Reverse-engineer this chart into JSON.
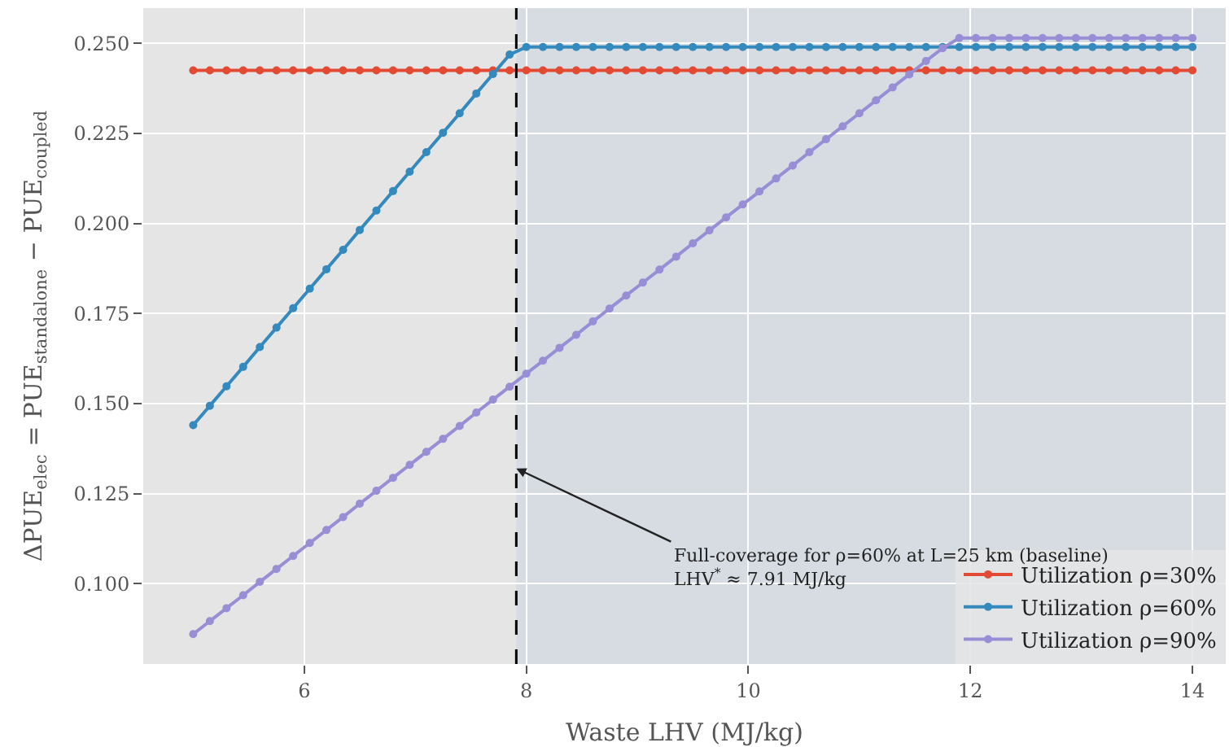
{
  "chart_data": {
    "type": "line",
    "xlabel": "Waste LHV (MJ/kg)",
    "ylabel": "ΔPUE$_{elec}$ = PUE$_{standalone}$ − PUE$_{coupled}$",
    "x": [
      5.0,
      5.15,
      5.3,
      5.45,
      5.6,
      5.75,
      5.9,
      6.05,
      6.2,
      6.35,
      6.5,
      6.65,
      6.8,
      6.95,
      7.1,
      7.25,
      7.4,
      7.55,
      7.7,
      7.85,
      8.0,
      8.15,
      8.3,
      8.45,
      8.6,
      8.75,
      8.9,
      9.05,
      9.2,
      9.35,
      9.5,
      9.65,
      9.8,
      9.95,
      10.1,
      10.25,
      10.4,
      10.55,
      10.7,
      10.85,
      11.0,
      11.15,
      11.3,
      11.45,
      11.6,
      11.75,
      11.9,
      12.05,
      12.2,
      12.35,
      12.5,
      12.65,
      12.8,
      12.95,
      13.1,
      13.25,
      13.4,
      13.55,
      13.7,
      13.85,
      14.0
    ],
    "series": [
      {
        "name": "Utilization ρ=30%",
        "color": "#e24a33",
        "values": [
          0.2425,
          0.2425,
          0.2425,
          0.2425,
          0.2425,
          0.2425,
          0.2425,
          0.2425,
          0.2425,
          0.2425,
          0.2425,
          0.2425,
          0.2425,
          0.2425,
          0.2425,
          0.2425,
          0.2425,
          0.2425,
          0.2425,
          0.2425,
          0.2425,
          0.2425,
          0.2425,
          0.2425,
          0.2425,
          0.2425,
          0.2425,
          0.2425,
          0.2425,
          0.2425,
          0.2425,
          0.2425,
          0.2425,
          0.2425,
          0.2425,
          0.2425,
          0.2425,
          0.2425,
          0.2425,
          0.2425,
          0.2425,
          0.2425,
          0.2425,
          0.2425,
          0.2425,
          0.2425,
          0.2425,
          0.2425,
          0.2425,
          0.2425,
          0.2425,
          0.2425,
          0.2425,
          0.2425,
          0.2425,
          0.2425,
          0.2425,
          0.2425,
          0.2425,
          0.2425,
          0.2425
        ]
      },
      {
        "name": "Utilization ρ=60%",
        "color": "#348abd",
        "values": [
          0.144,
          0.1494,
          0.1548,
          0.1602,
          0.1657,
          0.1711,
          0.1765,
          0.1819,
          0.1873,
          0.1927,
          0.1982,
          0.2036,
          0.209,
          0.2144,
          0.2198,
          0.2252,
          0.2306,
          0.2361,
          0.2415,
          0.2469,
          0.249,
          0.249,
          0.249,
          0.249,
          0.249,
          0.249,
          0.249,
          0.249,
          0.249,
          0.249,
          0.249,
          0.249,
          0.249,
          0.249,
          0.249,
          0.249,
          0.249,
          0.249,
          0.249,
          0.249,
          0.249,
          0.249,
          0.249,
          0.249,
          0.249,
          0.249,
          0.249,
          0.249,
          0.249,
          0.249,
          0.249,
          0.249,
          0.249,
          0.249,
          0.249,
          0.249,
          0.249,
          0.249,
          0.249,
          0.249,
          0.249
        ]
      },
      {
        "name": "Utilization ρ=90%",
        "color": "#988ed5",
        "values": [
          0.086,
          0.0896,
          0.0932,
          0.0968,
          0.1005,
          0.1041,
          0.1077,
          0.1113,
          0.1149,
          0.1185,
          0.1222,
          0.1258,
          0.1294,
          0.133,
          0.1366,
          0.1402,
          0.1438,
          0.1475,
          0.1511,
          0.1547,
          0.1583,
          0.1619,
          0.1655,
          0.1691,
          0.1728,
          0.1764,
          0.18,
          0.1836,
          0.1872,
          0.1908,
          0.1945,
          0.1981,
          0.2017,
          0.2053,
          0.2089,
          0.2125,
          0.2161,
          0.2198,
          0.2234,
          0.227,
          0.2306,
          0.2342,
          0.2378,
          0.2414,
          0.2451,
          0.2487,
          0.2515,
          0.2515,
          0.2515,
          0.2515,
          0.2515,
          0.2515,
          0.2515,
          0.2515,
          0.2515,
          0.2515,
          0.2515,
          0.2515,
          0.2515,
          0.2515,
          0.2515
        ]
      }
    ],
    "xlim": [
      4.55,
      14.3
    ],
    "xticks": [
      6,
      8,
      10,
      12,
      14
    ],
    "ylim": [
      0.0777,
      0.2598
    ],
    "yticks": [
      {
        "value": 0.1,
        "label": "0.100"
      },
      {
        "value": 0.125,
        "label": "0.125"
      },
      {
        "value": 0.15,
        "label": "0.150"
      },
      {
        "value": 0.175,
        "label": "0.175"
      },
      {
        "value": 0.2,
        "label": "0.200"
      },
      {
        "value": 0.225,
        "label": "0.225"
      },
      {
        "value": 0.25,
        "label": "0.250"
      }
    ],
    "ref_lines": [
      {
        "axis": "x",
        "value": 7.91,
        "color": "#000000",
        "line_style": "dashed"
      }
    ],
    "bands": [
      {
        "axis": "x",
        "from": 7.91,
        "to": 14.3,
        "color": "#d6dce2"
      }
    ],
    "annotations": [
      {
        "text": "Full-coverage for ρ=60% at L=25 km (baseline)\nLHV$^{*}$ ≈ 7.91 MJ/kg",
        "x": 7.91,
        "y": 0.132
      }
    ],
    "grid": true,
    "legend": "bottom right",
    "marker": "circle",
    "line_style": "solid"
  }
}
